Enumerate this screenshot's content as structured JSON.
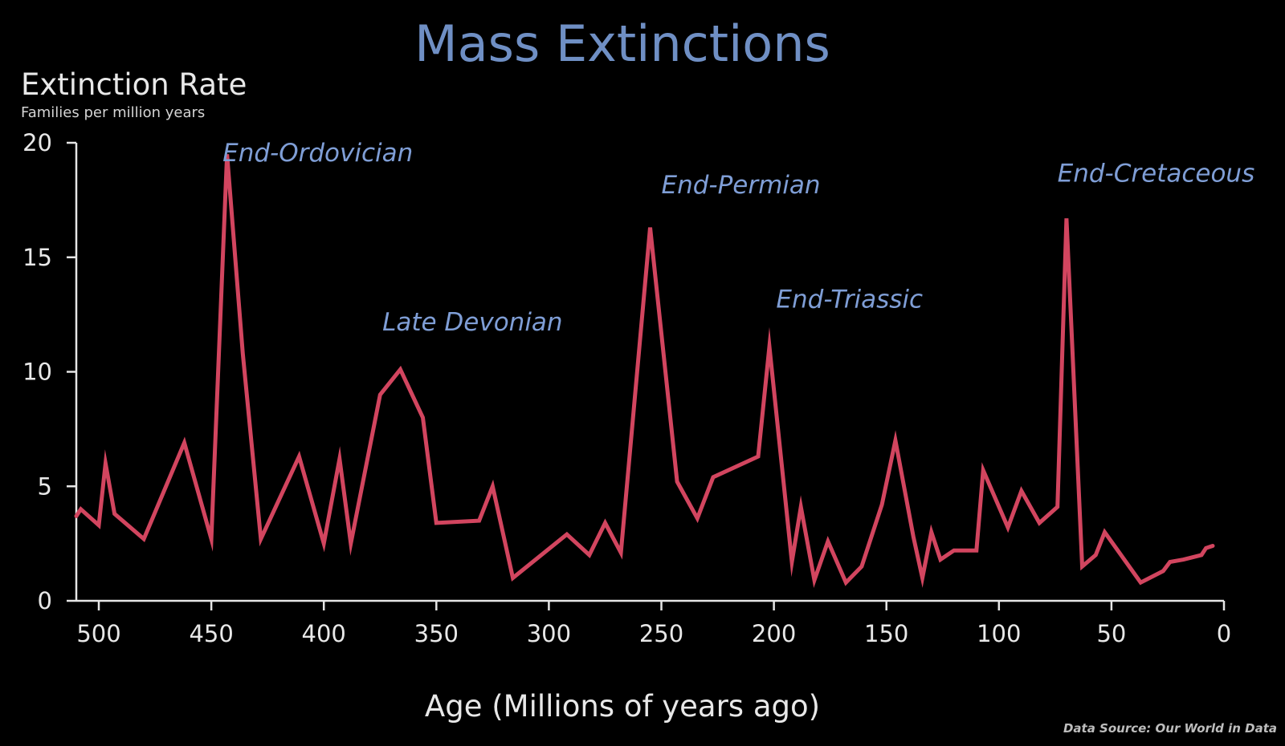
{
  "colors": {
    "background": "#000000",
    "title": "#6f8fc4",
    "annotation": "#7f9ed6",
    "line": "#d2455f",
    "axis": "#e6e6e6",
    "text": "#e8e8e8",
    "subtext": "#d4d4d4",
    "source": "#bdbdbd"
  },
  "source_note": "Data Source: Our World in Data",
  "chart_data": {
    "type": "line",
    "title": "Mass Extinctions",
    "ylabel": "Extinction Rate",
    "ylabel_units": "Families per million years",
    "xlabel": "Age (Millions of years ago)",
    "x_reversed": true,
    "xlim": [
      510,
      0
    ],
    "ylim": [
      0,
      20
    ],
    "x_ticks": [
      500,
      450,
      400,
      350,
      300,
      250,
      200,
      150,
      100,
      50,
      0
    ],
    "y_ticks": [
      0,
      5,
      10,
      15,
      20
    ],
    "grid": false,
    "legend": "none",
    "series": [
      {
        "x": [
          510,
          508,
          500,
          497,
          493,
          480,
          462,
          450,
          443,
          436,
          428,
          411,
          400,
          393,
          388,
          375,
          366,
          356,
          350,
          331,
          325,
          316,
          292,
          282,
          275,
          268,
          255,
          243,
          234,
          227,
          207,
          202,
          192,
          188,
          182,
          176,
          168,
          161,
          152,
          146,
          138,
          134,
          130,
          126,
          120,
          110,
          107,
          96,
          90,
          82,
          74,
          70,
          63,
          57,
          53,
          37,
          27,
          24,
          18,
          10,
          8,
          5
        ],
        "y": [
          3.7,
          4.0,
          3.3,
          6.0,
          3.8,
          2.7,
          6.9,
          2.7,
          19.5,
          10.8,
          2.7,
          6.3,
          2.5,
          6.2,
          2.5,
          9.0,
          10.1,
          8.0,
          3.4,
          3.5,
          5.0,
          1.0,
          2.9,
          2.0,
          3.4,
          2.1,
          16.3,
          5.2,
          3.6,
          5.4,
          6.3,
          11.1,
          1.7,
          4.1,
          0.9,
          2.6,
          0.8,
          1.5,
          4.2,
          7.0,
          2.8,
          1.0,
          3.0,
          1.8,
          2.2,
          2.2,
          5.7,
          3.2,
          4.8,
          3.4,
          4.1,
          16.7,
          1.5,
          2.0,
          3.0,
          0.8,
          1.3,
          1.7,
          1.8,
          2.0,
          2.3,
          2.4
        ]
      }
    ],
    "annotations": [
      {
        "text": "End-Ordovician",
        "x": 445,
        "y": 19.2
      },
      {
        "text": "Late Devonian",
        "x": 374,
        "y": 11.8
      },
      {
        "text": "End-Permian",
        "x": 250,
        "y": 17.8
      },
      {
        "text": "End-Triassic",
        "x": 199,
        "y": 12.8
      },
      {
        "text": "End-Cretaceous",
        "x": 74,
        "y": 18.3
      }
    ]
  }
}
